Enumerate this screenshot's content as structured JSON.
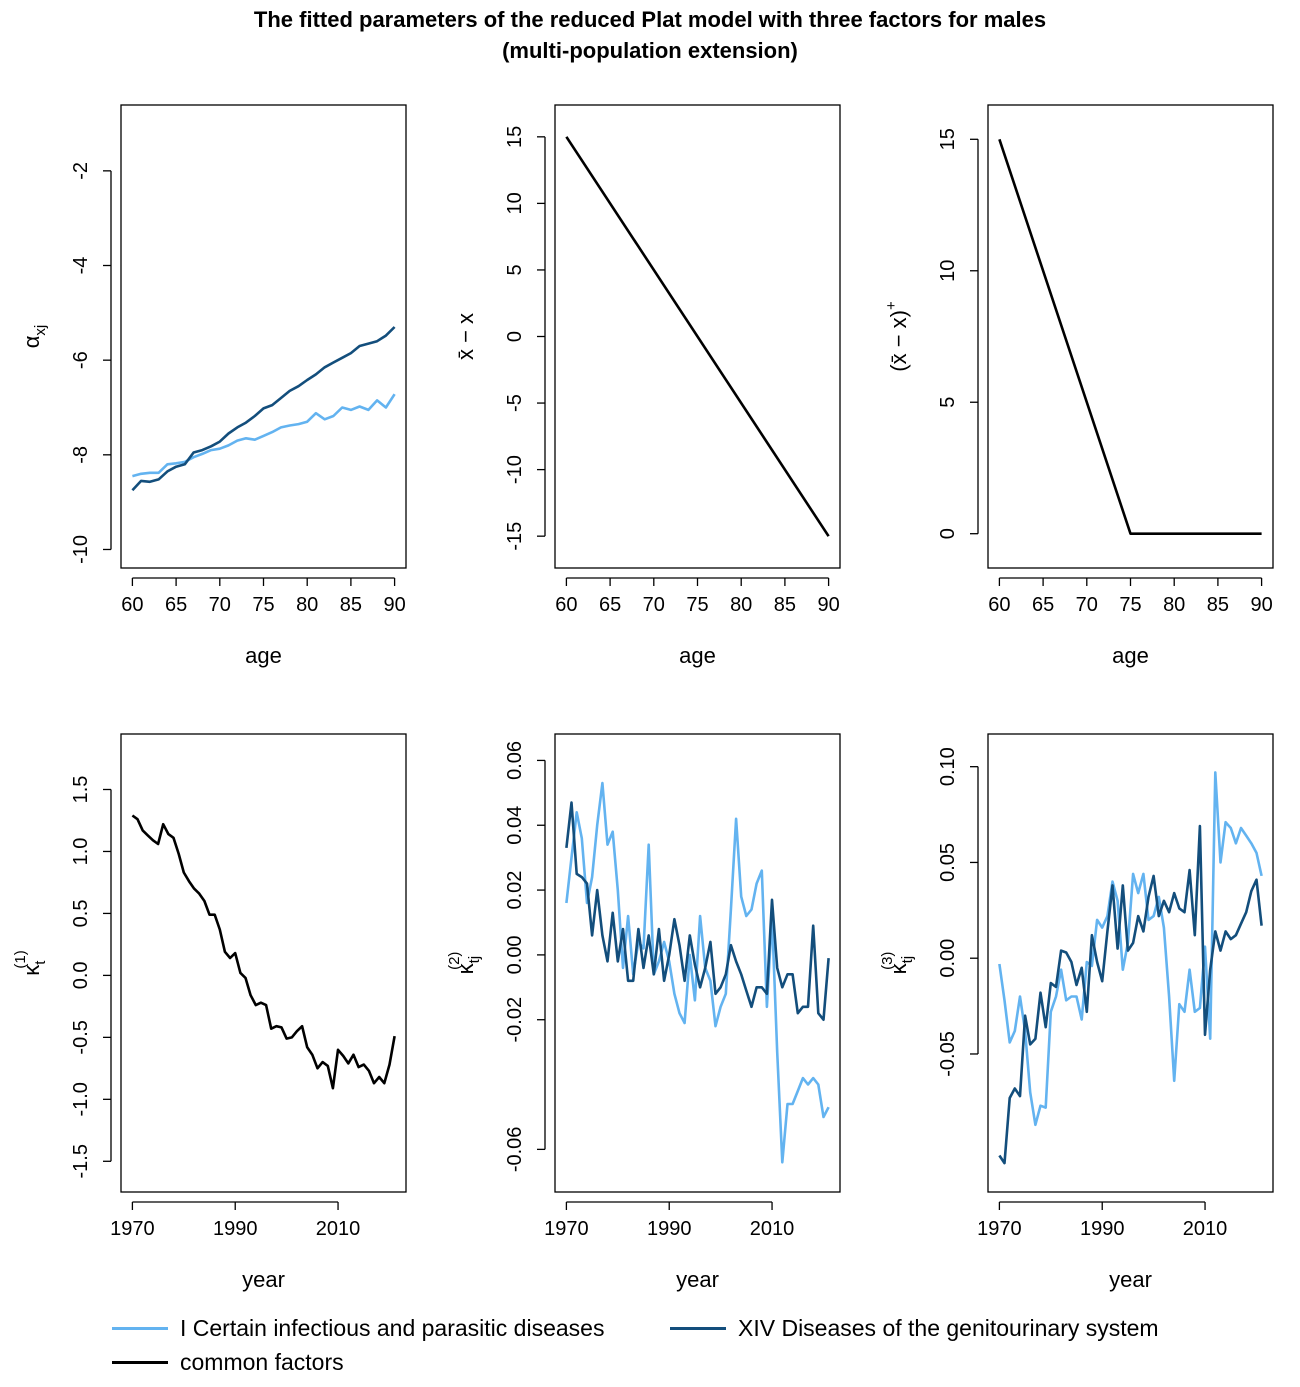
{
  "figure": {
    "title_line1": "The fitted parameters of the reduced Plat model with three factors for males",
    "title_line2": "(multi-population extension)"
  },
  "colors": {
    "light": "#63B3F0",
    "dark": "#134E7C",
    "common": "#000000"
  },
  "legend": {
    "items": [
      {
        "label": "I Certain infectious and parasitic diseases",
        "color": "#63B3F0"
      },
      {
        "label": "XIV Diseases of the genitourinary system",
        "color": "#134E7C"
      },
      {
        "label": "common factors",
        "color": "#000000"
      }
    ]
  },
  "chart_data": [
    {
      "id": "alpha",
      "type": "line",
      "xlabel": "age",
      "ylabel": "α_xj",
      "xlim": [
        60,
        90
      ],
      "ylim": [
        -10,
        -1
      ],
      "xticks": [
        60,
        65,
        70,
        75,
        80,
        85,
        90
      ],
      "yticks": [
        -10,
        -8,
        -6,
        -4,
        -2
      ],
      "series": [
        {
          "color": "#63B3F0",
          "x": [
            60,
            61,
            62,
            63,
            64,
            65,
            66,
            67,
            68,
            69,
            70,
            71,
            72,
            73,
            74,
            75,
            76,
            77,
            78,
            79,
            80,
            81,
            82,
            83,
            84,
            85,
            86,
            87,
            88,
            89,
            90
          ],
          "y": [
            -8.45,
            -8.4,
            -8.38,
            -8.38,
            -8.2,
            -8.18,
            -8.15,
            -8.05,
            -7.98,
            -7.9,
            -7.87,
            -7.8,
            -7.7,
            -7.65,
            -7.68,
            -7.6,
            -7.52,
            -7.42,
            -7.38,
            -7.35,
            -7.3,
            -7.12,
            -7.25,
            -7.18,
            -7.0,
            -7.05,
            -6.98,
            -7.05,
            -6.85,
            -7.0,
            -6.72
          ]
        },
        {
          "color": "#134E7C",
          "x": [
            60,
            61,
            62,
            63,
            64,
            65,
            66,
            67,
            68,
            69,
            70,
            71,
            72,
            73,
            74,
            75,
            76,
            77,
            78,
            79,
            80,
            81,
            82,
            83,
            84,
            85,
            86,
            87,
            88,
            89,
            90
          ],
          "y": [
            -8.75,
            -8.55,
            -8.57,
            -8.52,
            -8.35,
            -8.25,
            -8.2,
            -7.95,
            -7.9,
            -7.82,
            -7.72,
            -7.55,
            -7.42,
            -7.32,
            -7.18,
            -7.02,
            -6.95,
            -6.8,
            -6.65,
            -6.55,
            -6.42,
            -6.3,
            -6.15,
            -6.05,
            -5.95,
            -5.85,
            -5.7,
            -5.65,
            -5.6,
            -5.48,
            -5.3
          ]
        }
      ]
    },
    {
      "id": "xbar",
      "type": "line",
      "xlabel": "age",
      "ylabel": "x̄ − x",
      "xlim": [
        60,
        90
      ],
      "ylim": [
        -16,
        16
      ],
      "xticks": [
        60,
        65,
        70,
        75,
        80,
        85,
        90
      ],
      "yticks": [
        -15,
        -10,
        -5,
        0,
        5,
        10,
        15
      ],
      "series": [
        {
          "color": "#000000",
          "x": [
            60,
            90
          ],
          "y": [
            15,
            -15
          ]
        }
      ]
    },
    {
      "id": "xplus",
      "type": "line",
      "xlabel": "age",
      "ylabel": "(x̄ − x)+",
      "xlim": [
        60,
        90
      ],
      "ylim": [
        -0.6,
        15.6
      ],
      "xticks": [
        60,
        65,
        70,
        75,
        80,
        85,
        90
      ],
      "yticks": [
        0,
        5,
        10,
        15
      ],
      "series": [
        {
          "color": "#000000",
          "x": [
            60,
            75,
            90
          ],
          "y": [
            15,
            0,
            0
          ]
        }
      ]
    },
    {
      "id": "kappa1",
      "type": "line",
      "xlabel": "year",
      "ylabel": "κ_t^(1)",
      "xlim": [
        1970,
        2021
      ],
      "ylim": [
        -1.6,
        1.8
      ],
      "xticks": [
        1970,
        1990,
        2010
      ],
      "yticks": [
        -1.5,
        -1.0,
        -0.5,
        0.0,
        0.5,
        1.0,
        1.5
      ],
      "series": [
        {
          "color": "#000000",
          "x": [
            1970,
            1971,
            1972,
            1973,
            1974,
            1975,
            1976,
            1977,
            1978,
            1979,
            1980,
            1981,
            1982,
            1983,
            1984,
            1985,
            1986,
            1987,
            1988,
            1989,
            1990,
            1991,
            1992,
            1993,
            1994,
            1995,
            1996,
            1997,
            1998,
            1999,
            2000,
            2001,
            2002,
            2003,
            2004,
            2005,
            2006,
            2007,
            2008,
            2009,
            2010,
            2011,
            2012,
            2013,
            2014,
            2015,
            2016,
            2017,
            2018,
            2019,
            2020,
            2021
          ],
          "y": [
            1.29,
            1.26,
            1.17,
            1.13,
            1.09,
            1.06,
            1.22,
            1.14,
            1.11,
            0.98,
            0.83,
            0.76,
            0.7,
            0.66,
            0.6,
            0.49,
            0.49,
            0.37,
            0.19,
            0.14,
            0.18,
            0.02,
            -0.02,
            -0.16,
            -0.24,
            -0.22,
            -0.24,
            -0.43,
            -0.41,
            -0.42,
            -0.51,
            -0.5,
            -0.45,
            -0.41,
            -0.58,
            -0.64,
            -0.75,
            -0.7,
            -0.73,
            -0.91,
            -0.6,
            -0.65,
            -0.71,
            -0.64,
            -0.74,
            -0.72,
            -0.77,
            -0.87,
            -0.82,
            -0.87,
            -0.72,
            -0.49
          ]
        }
      ]
    },
    {
      "id": "kappa2",
      "type": "line",
      "xlabel": "year",
      "ylabel": "κ_tj^(2)",
      "xlim": [
        1970,
        2021
      ],
      "ylim": [
        -0.0675,
        0.0625
      ],
      "xticks": [
        1970,
        1990,
        2010
      ],
      "yticks": [
        -0.06,
        -0.02,
        0.0,
        0.02,
        0.04,
        0.06
      ],
      "series": [
        {
          "color": "#63B3F0",
          "x": [
            1970,
            1971,
            1972,
            1973,
            1974,
            1975,
            1976,
            1977,
            1978,
            1979,
            1980,
            1981,
            1982,
            1983,
            1984,
            1985,
            1986,
            1987,
            1988,
            1989,
            1990,
            1991,
            1992,
            1993,
            1994,
            1995,
            1996,
            1997,
            1998,
            1999,
            2000,
            2001,
            2002,
            2003,
            2004,
            2005,
            2006,
            2007,
            2008,
            2009,
            2010,
            2011,
            2012,
            2013,
            2014,
            2015,
            2016,
            2017,
            2018,
            2019,
            2020,
            2021
          ],
          "y": [
            0.016,
            0.03,
            0.044,
            0.036,
            0.016,
            0.024,
            0.04,
            0.053,
            0.034,
            0.038,
            0.02,
            -0.004,
            0.012,
            -0.006,
            0.004,
            0.002,
            0.034,
            -0.006,
            -0.002,
            0.004,
            -0.002,
            -0.012,
            -0.018,
            -0.021,
            0.0,
            -0.014,
            0.012,
            -0.004,
            -0.008,
            -0.022,
            -0.016,
            -0.012,
            0.014,
            0.042,
            0.018,
            0.012,
            0.014,
            0.022,
            0.026,
            -0.016,
            0.012,
            -0.03,
            -0.064,
            -0.046,
            -0.046,
            -0.042,
            -0.038,
            -0.04,
            -0.038,
            -0.04,
            -0.05,
            -0.047
          ]
        },
        {
          "color": "#134E7C",
          "x": [
            1970,
            1971,
            1972,
            1973,
            1974,
            1975,
            1976,
            1977,
            1978,
            1979,
            1980,
            1981,
            1982,
            1983,
            1984,
            1985,
            1986,
            1987,
            1988,
            1989,
            1990,
            1991,
            1992,
            1993,
            1994,
            1995,
            1996,
            1997,
            1998,
            1999,
            2000,
            2001,
            2002,
            2003,
            2004,
            2005,
            2006,
            2007,
            2008,
            2009,
            2010,
            2011,
            2012,
            2013,
            2014,
            2015,
            2016,
            2017,
            2018,
            2019,
            2020,
            2021
          ],
          "y": [
            0.033,
            0.047,
            0.025,
            0.024,
            0.022,
            0.006,
            0.02,
            0.006,
            -0.002,
            0.013,
            -0.002,
            0.008,
            -0.008,
            -0.008,
            0.008,
            -0.004,
            0.006,
            -0.006,
            0.008,
            -0.008,
            0.0,
            0.011,
            0.003,
            -0.008,
            0.006,
            -0.003,
            -0.01,
            -0.004,
            0.004,
            -0.012,
            -0.01,
            -0.006,
            0.003,
            -0.002,
            -0.006,
            -0.011,
            -0.016,
            -0.01,
            -0.01,
            -0.012,
            0.017,
            -0.004,
            -0.01,
            -0.006,
            -0.006,
            -0.018,
            -0.016,
            -0.016,
            0.009,
            -0.018,
            -0.02,
            -0.001
          ]
        }
      ]
    },
    {
      "id": "kappa3",
      "type": "line",
      "xlabel": "year",
      "ylabel": "κ_tj^(3)",
      "xlim": [
        1970,
        2021
      ],
      "ylim": [
        -0.1125,
        0.1075
      ],
      "xticks": [
        1970,
        1990,
        2010
      ],
      "yticks": [
        -0.05,
        0.0,
        0.05,
        0.1
      ],
      "series": [
        {
          "color": "#63B3F0",
          "x": [
            1970,
            1971,
            1972,
            1973,
            1974,
            1975,
            1976,
            1977,
            1978,
            1979,
            1980,
            1981,
            1982,
            1983,
            1984,
            1985,
            1986,
            1987,
            1988,
            1989,
            1990,
            1991,
            1992,
            1993,
            1994,
            1995,
            1996,
            1997,
            1998,
            1999,
            2000,
            2001,
            2002,
            2003,
            2004,
            2005,
            2006,
            2007,
            2008,
            2009,
            2010,
            2011,
            2012,
            2013,
            2014,
            2015,
            2016,
            2017,
            2018,
            2019,
            2020,
            2021
          ],
          "y": [
            -0.003,
            -0.022,
            -0.044,
            -0.038,
            -0.02,
            -0.038,
            -0.07,
            -0.087,
            -0.077,
            -0.078,
            -0.028,
            -0.02,
            -0.006,
            -0.022,
            -0.02,
            -0.02,
            -0.032,
            -0.002,
            -0.004,
            0.02,
            0.016,
            0.022,
            0.04,
            0.03,
            -0.006,
            0.008,
            0.044,
            0.034,
            0.044,
            0.02,
            0.022,
            0.032,
            0.016,
            -0.02,
            -0.064,
            -0.024,
            -0.028,
            -0.006,
            -0.028,
            -0.026,
            0.006,
            -0.042,
            0.097,
            0.05,
            0.071,
            0.068,
            0.06,
            0.068,
            0.064,
            0.06,
            0.055,
            0.043
          ]
        },
        {
          "color": "#134E7C",
          "x": [
            1970,
            1971,
            1972,
            1973,
            1974,
            1975,
            1976,
            1977,
            1978,
            1979,
            1980,
            1981,
            1982,
            1983,
            1984,
            1985,
            1986,
            1987,
            1988,
            1989,
            1990,
            1991,
            1992,
            1993,
            1994,
            1995,
            1996,
            1997,
            1998,
            1999,
            2000,
            2001,
            2002,
            2003,
            2004,
            2005,
            2006,
            2007,
            2008,
            2009,
            2010,
            2011,
            2012,
            2013,
            2014,
            2015,
            2016,
            2017,
            2018,
            2019,
            2020,
            2021
          ],
          "y": [
            -0.103,
            -0.107,
            -0.073,
            -0.068,
            -0.072,
            -0.03,
            -0.045,
            -0.042,
            -0.018,
            -0.036,
            -0.013,
            -0.015,
            0.004,
            0.003,
            -0.002,
            -0.014,
            -0.005,
            -0.028,
            0.012,
            -0.002,
            -0.012,
            0.014,
            0.038,
            0.005,
            0.038,
            0.004,
            0.008,
            0.022,
            0.014,
            0.032,
            0.043,
            0.022,
            0.03,
            0.024,
            0.034,
            0.026,
            0.024,
            0.046,
            0.012,
            0.069,
            -0.04,
            -0.006,
            0.014,
            0.004,
            0.014,
            0.01,
            0.012,
            0.018,
            0.024,
            0.035,
            0.041,
            0.017
          ]
        }
      ]
    }
  ]
}
